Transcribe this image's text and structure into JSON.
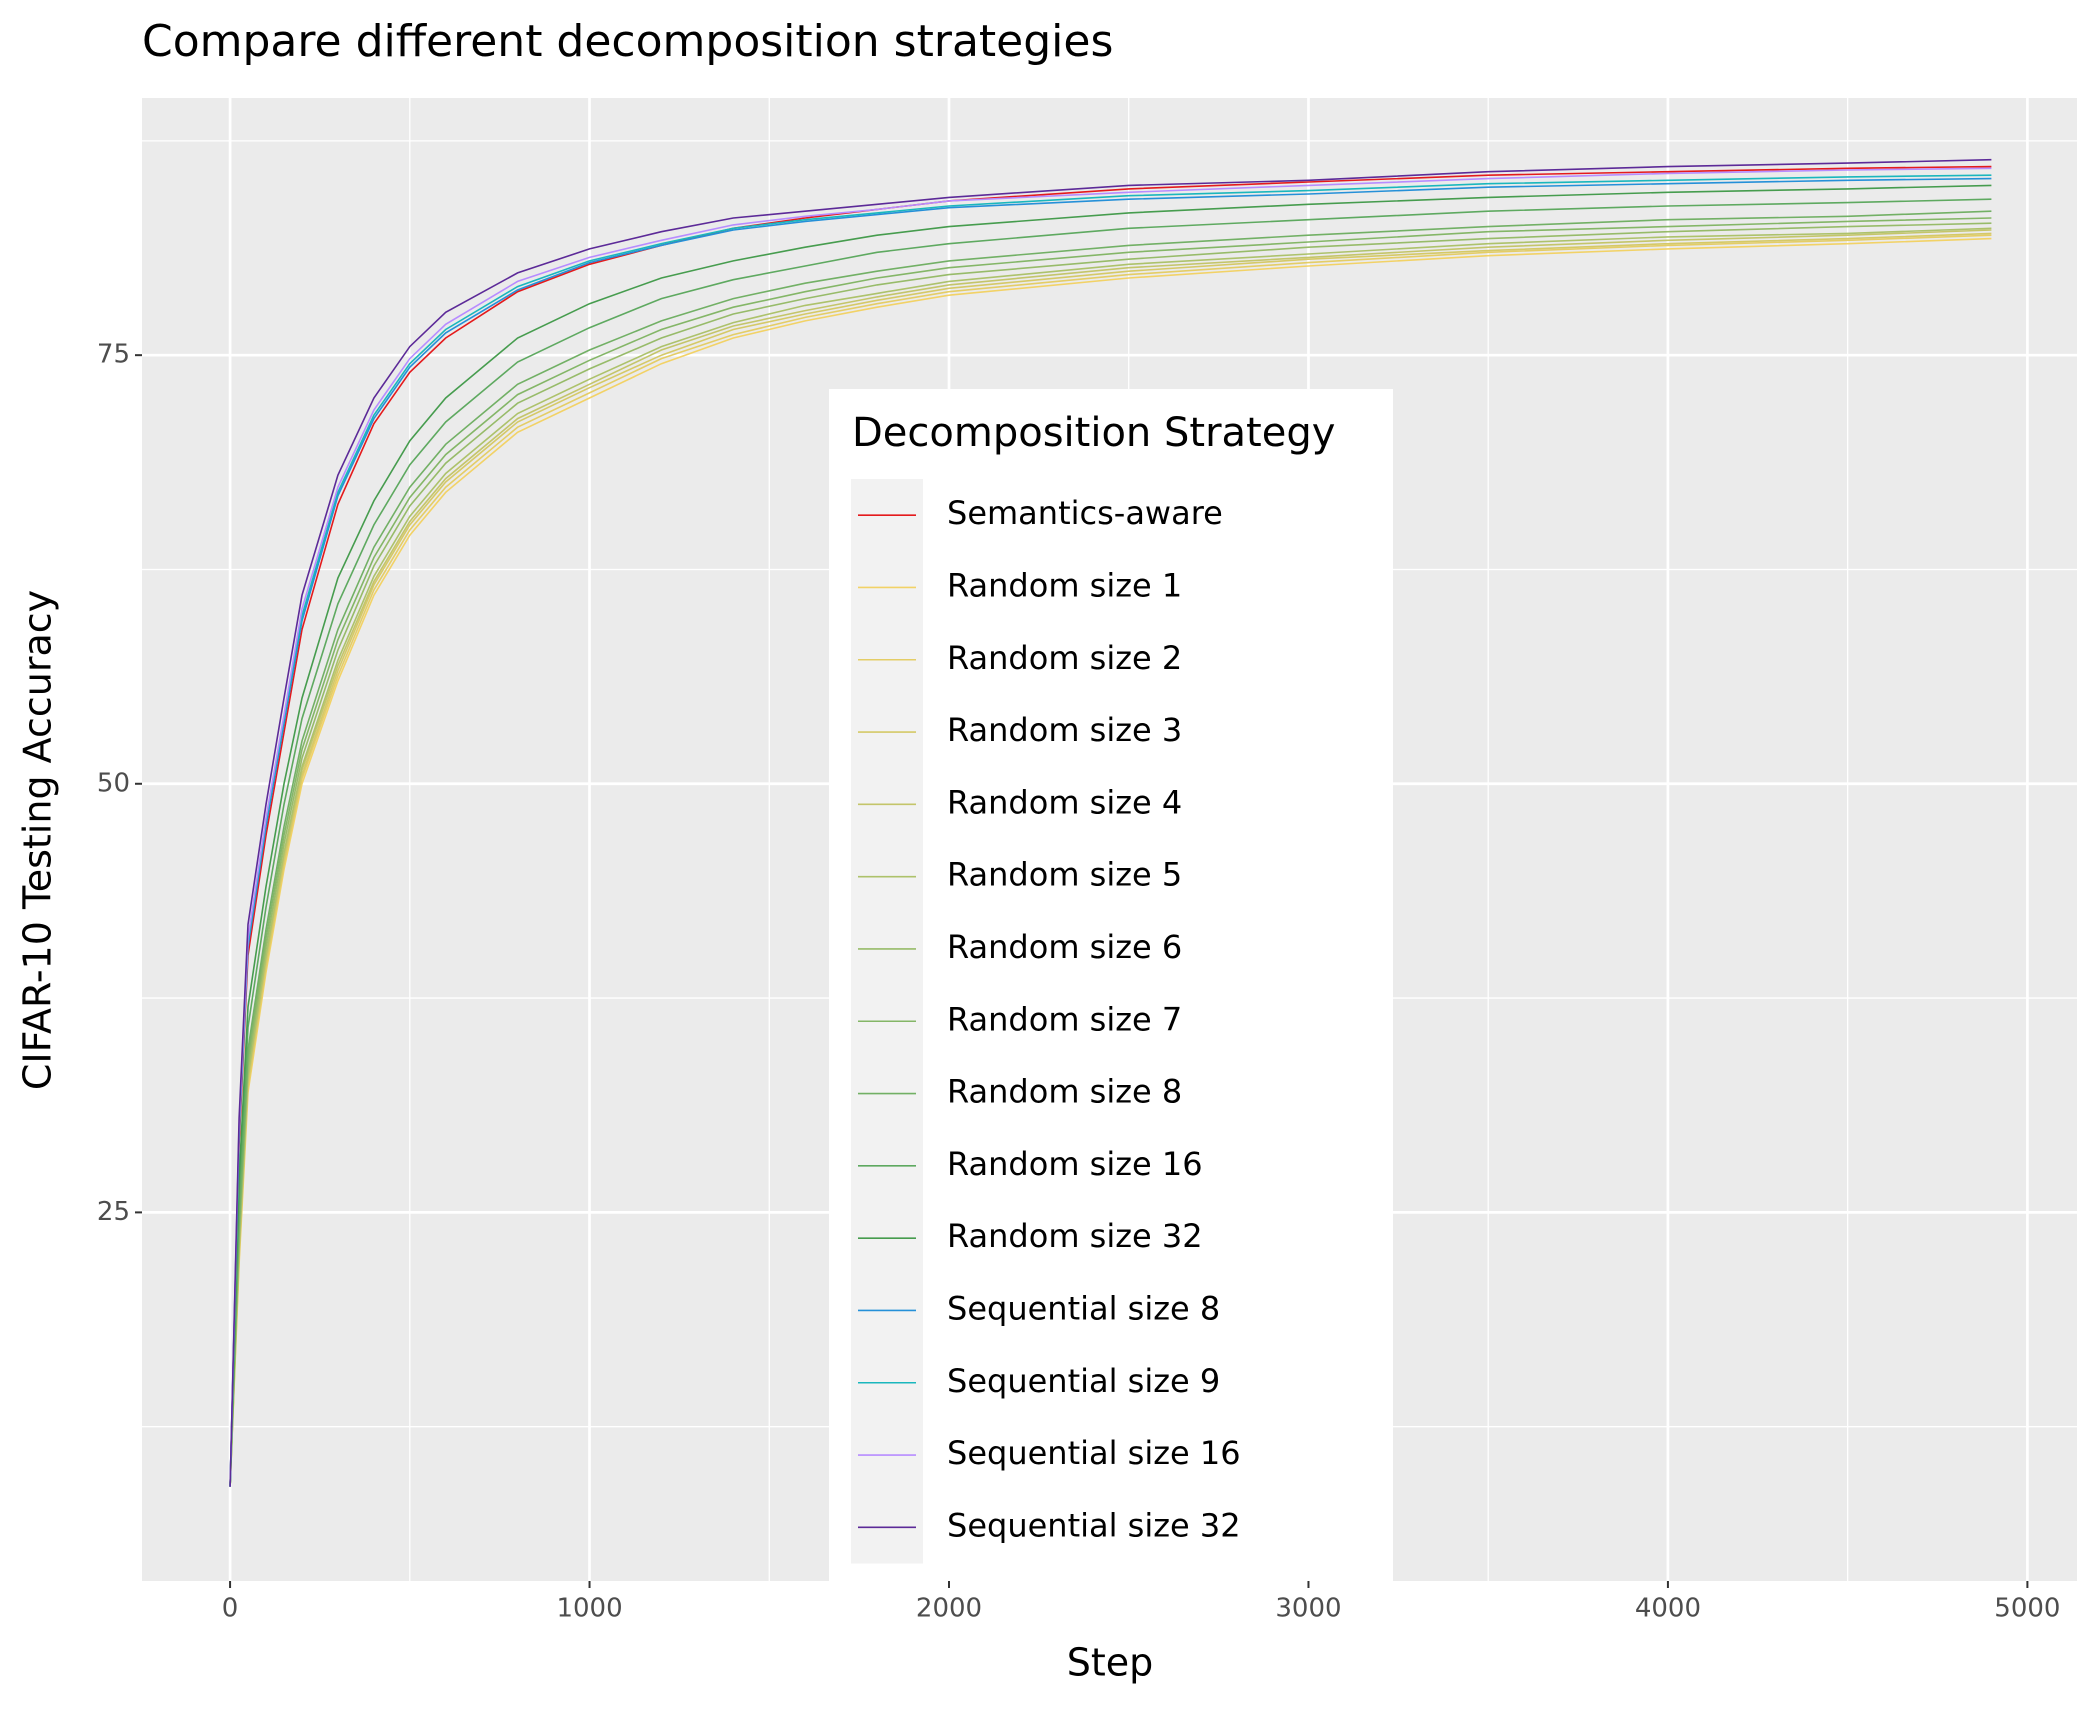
{
  "chart_data": {
    "type": "line",
    "title": "Compare different decomposition strategies",
    "x_label": "Step",
    "y_label": "CIFAR-10 Testing Accuracy",
    "legend_title": "Decomposition Strategy",
    "xlim": [
      -245,
      5138
    ],
    "ylim": [
      3.5,
      90
    ],
    "xticks": [
      0,
      1000,
      2000,
      3000,
      4000,
      5000
    ],
    "yticks": [
      25,
      50,
      75
    ],
    "x_minor_ticks": [
      500,
      1500,
      2500,
      3500,
      4500
    ],
    "y_minor_ticks": [
      12.5,
      37.5,
      62.5,
      87.5
    ],
    "grid": true,
    "x": [
      0,
      25,
      50,
      100,
      150,
      200,
      300,
      400,
      500,
      600,
      800,
      1000,
      1200,
      1400,
      1600,
      1800,
      2000,
      2500,
      3000,
      3500,
      4000,
      4500,
      4900
    ],
    "series": [
      {
        "name": "Semantics-aware",
        "color": "#e41a1c",
        "values": [
          9,
          29,
          40,
          47,
          53,
          59,
          66.3,
          71,
          74,
          76,
          78.7,
          80.3,
          81.4,
          82.4,
          83,
          83.5,
          84,
          84.7,
          85.1,
          85.5,
          85.7,
          85.9,
          86
        ]
      },
      {
        "name": "Random size 1",
        "color": "#f2d266",
        "values": [
          9,
          22,
          32,
          39,
          45,
          50,
          56,
          61,
          64.5,
          67,
          70.5,
          72.5,
          74.5,
          76,
          77,
          77.8,
          78.5,
          79.5,
          80.2,
          80.8,
          81.2,
          81.5,
          81.8
        ]
      },
      {
        "name": "Random size 2",
        "color": "#e4cd66",
        "values": [
          9,
          22.3,
          32.3,
          39.3,
          45.3,
          50.3,
          56.3,
          61.3,
          64.8,
          67.3,
          70.8,
          72.8,
          74.8,
          76.2,
          77.2,
          78,
          78.7,
          79.7,
          80.4,
          81,
          81.4,
          81.7,
          82
        ]
      },
      {
        "name": "Random size 3",
        "color": "#d5c967",
        "values": [
          9,
          22.5,
          32.5,
          39.5,
          45.5,
          50.5,
          56.6,
          61.6,
          65.1,
          67.6,
          71.1,
          73.1,
          75,
          76.5,
          77.4,
          78.2,
          78.9,
          79.9,
          80.6,
          81.1,
          81.5,
          81.8,
          82.1
        ]
      },
      {
        "name": "Random size 4",
        "color": "#c4c56a",
        "values": [
          9,
          22.8,
          32.8,
          39.8,
          45.8,
          50.8,
          56.9,
          61.8,
          65.3,
          67.8,
          71.3,
          73.3,
          75.3,
          76.7,
          77.6,
          78.4,
          79.1,
          80.1,
          80.7,
          81.3,
          81.7,
          82,
          82.3
        ]
      },
      {
        "name": "Random size 5",
        "color": "#adc26b",
        "values": [
          9,
          23,
          33,
          40,
          46,
          51,
          57.2,
          62.1,
          65.6,
          68.1,
          71.6,
          73.6,
          75.5,
          76.9,
          77.9,
          78.6,
          79.3,
          80.3,
          80.9,
          81.5,
          81.9,
          82.1,
          82.4
        ]
      },
      {
        "name": "Random size 6",
        "color": "#97bb69",
        "values": [
          9,
          23.5,
          33.5,
          40.5,
          46.5,
          51.5,
          57.8,
          62.7,
          66.2,
          68.7,
          72.2,
          74.2,
          76,
          77.4,
          78.3,
          79.1,
          79.7,
          80.6,
          81.3,
          81.8,
          82.2,
          82.5,
          82.7
        ]
      },
      {
        "name": "Random size 7",
        "color": "#84b667",
        "values": [
          9,
          24,
          34,
          41,
          47,
          52,
          58.4,
          63.2,
          66.7,
          69.2,
          72.7,
          74.7,
          76.5,
          77.8,
          78.7,
          79.5,
          80.1,
          81,
          81.6,
          82.2,
          82.5,
          82.8,
          83
        ]
      },
      {
        "name": "Random size 8",
        "color": "#72b065",
        "values": [
          9,
          24.5,
          34.5,
          41.5,
          47.5,
          52.5,
          59,
          63.8,
          67.3,
          69.8,
          73.3,
          75.3,
          77,
          78.3,
          79.2,
          79.9,
          80.5,
          81.4,
          82,
          82.5,
          82.9,
          83.1,
          83.4
        ]
      },
      {
        "name": "Random size 16",
        "color": "#5ea960",
        "values": [
          9,
          25.8,
          35.8,
          42.8,
          48.8,
          53.8,
          60.5,
          65.1,
          68.6,
          71.1,
          74.6,
          76.6,
          78.3,
          79.4,
          80.2,
          81,
          81.5,
          82.4,
          82.9,
          83.4,
          83.7,
          83.9,
          84.1
        ]
      },
      {
        "name": "Random size 32",
        "color": "#469c4e",
        "values": [
          9,
          27,
          37,
          44,
          50,
          55,
          62,
          66.5,
          70,
          72.5,
          76,
          78,
          79.5,
          80.5,
          81.3,
          82,
          82.5,
          83.3,
          83.8,
          84.2,
          84.5,
          84.7,
          84.9
        ]
      },
      {
        "name": "Sequential size 8",
        "color": "#2590d8",
        "values": [
          9,
          29.5,
          40.5,
          47.5,
          53.5,
          59.5,
          66.8,
          71.3,
          74.3,
          76.3,
          78.8,
          80.4,
          81.4,
          82.3,
          82.8,
          83.2,
          83.6,
          84.1,
          84.4,
          84.8,
          85,
          85.2,
          85.3
        ]
      },
      {
        "name": "Sequential size 9",
        "color": "#1ab7bd",
        "values": [
          9,
          29.8,
          40.8,
          47.8,
          53.8,
          59.8,
          67,
          71.5,
          74.5,
          76.5,
          79,
          80.5,
          81.5,
          82.4,
          82.9,
          83.3,
          83.7,
          84.3,
          84.6,
          85,
          85.2,
          85.4,
          85.5
        ]
      },
      {
        "name": "Sequential size 16",
        "color": "#b78cff",
        "values": [
          9,
          30,
          41,
          48,
          54,
          60.2,
          67.3,
          71.8,
          74.8,
          76.8,
          79.3,
          80.7,
          81.7,
          82.6,
          83.1,
          83.5,
          84,
          84.5,
          84.9,
          85.3,
          85.6,
          85.8,
          85.9
        ]
      },
      {
        "name": "Sequential size 32",
        "color": "#5c2a98",
        "values": [
          9,
          30.5,
          41.8,
          48.8,
          55,
          61,
          68,
          72.5,
          75.5,
          77.5,
          79.8,
          81.2,
          82.2,
          83,
          83.4,
          83.8,
          84.2,
          84.9,
          85.2,
          85.7,
          86,
          86.2,
          86.4
        ]
      }
    ]
  }
}
